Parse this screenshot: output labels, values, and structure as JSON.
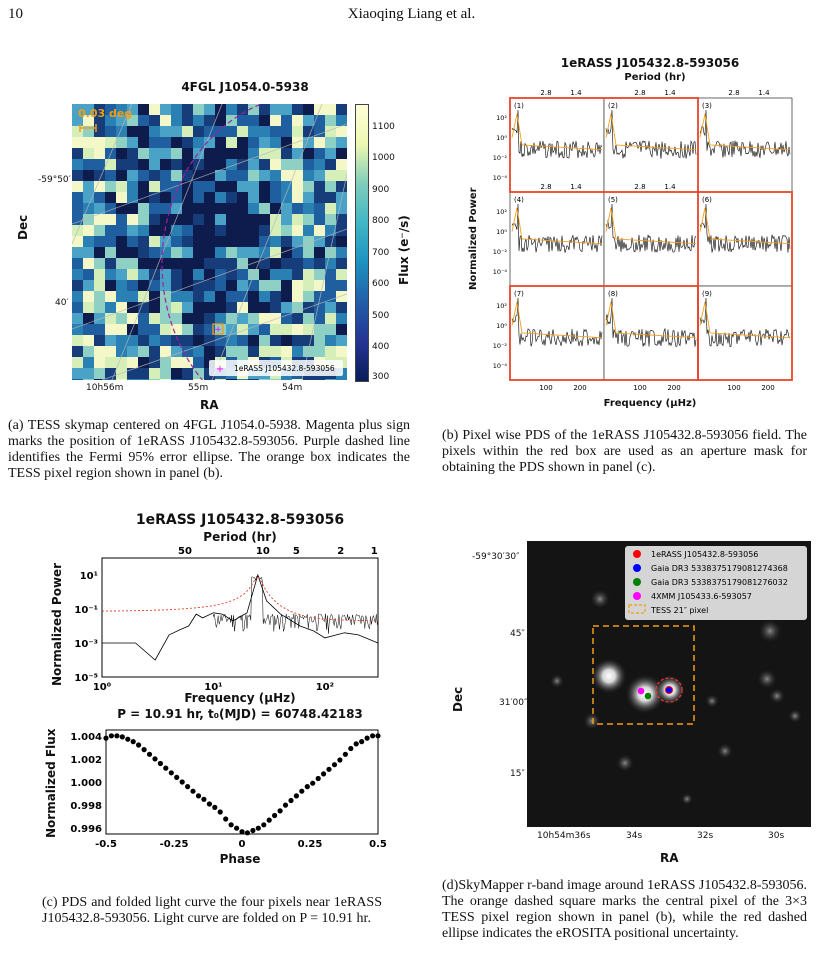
{
  "header": {
    "page_number": "10",
    "running_head": "Xiaoqing Liang et al."
  },
  "panel_a": {
    "title": "4FGL J1054.0-5938",
    "scale_label": "0.03 deg",
    "ylabel": "Dec",
    "xlabel": "RA",
    "colorbar_label": "Flux (e⁻/s)",
    "colorbar_ticks": [
      "1100",
      "1000",
      "900",
      "800",
      "700",
      "600",
      "500",
      "400",
      "300"
    ],
    "y_ticks": [
      "-59°50′",
      "40′"
    ],
    "x_ticks": [
      "10h56m",
      "55m",
      "54m"
    ],
    "legend": "1eRASS J105432.8-593056",
    "caption": "(a) TESS skymap centered on 4FGL J1054.0-5938. Magenta plus sign marks the position of 1eRASS J105432.8-593056. Purple dashed line identifies the Fermi 95% error ellipse. The orange box indicates the TESS pixel region shown in panel (b).",
    "colors": {
      "map_dark": "#0d1b4d",
      "map_mid": "#2a7fb3",
      "map_bright": "#f4f8c8",
      "ellipse": "#a020a0",
      "box": "#f39c12"
    }
  },
  "panel_b": {
    "title": "1eRASS J105432.8-593056",
    "top_axis_label": "Period (hr)",
    "top_ticks": [
      "2.8",
      "1.4"
    ],
    "ylabel": "Normalized Power",
    "xlabel": "Frequency (μHz)",
    "x_ticks": [
      "100",
      "200"
    ],
    "y_ticks": [
      "10²",
      "10⁰",
      "10⁻²",
      "10⁻⁴"
    ],
    "cells": [
      "(1)",
      "(2)",
      "(3)",
      "(4)",
      "(5)",
      "(6)",
      "(7)",
      "(8)",
      "(9)"
    ],
    "caption": "(b) Pixel wise PDS of the 1eRASS J105432.8-593056 field. The pixels within the red box are used as an aperture mask for obtaining the PDS shown in panel (c).",
    "colors": {
      "mask": "#e8452b",
      "pds": "#000000",
      "model": "#f0a020"
    }
  },
  "panel_c": {
    "title": "1eRASS J105432.8-593056",
    "top_axis_label": "Period (hr)",
    "top_ticks": [
      "50",
      "10",
      "5",
      "2",
      "1"
    ],
    "pds_ylabel": "Normalized Power",
    "pds_xlabel": "Frequency (μHz)",
    "pds_y_ticks": [
      "10¹",
      "10⁻¹",
      "10⁻³",
      "10⁻⁵"
    ],
    "pds_x_ticks": [
      "10⁰",
      "10¹",
      "10²"
    ],
    "lc_title": "P = 10.91 hr, t₀(MJD) = 60748.42183",
    "lc_ylabel": "Normalized Flux",
    "lc_xlabel": "Phase",
    "lc_y_ticks": [
      "1.004",
      "1.002",
      "1.000",
      "0.998",
      "0.996"
    ],
    "lc_x_ticks": [
      "-0.5",
      "-0.25",
      "0",
      "0.25",
      "0.5"
    ],
    "caption": "(c) PDS and folded light curve the four pixels near 1eRASS J105432.8-593056. Light curve are folded on P = 10.91 hr."
  },
  "panel_d": {
    "ylabel": "Dec",
    "xlabel": "RA",
    "y_ticks": [
      "-59°30′30″",
      "45″",
      "31′00″",
      "15″"
    ],
    "x_ticks": [
      "10h54m36s",
      "34s",
      "32s",
      "30s"
    ],
    "legend": [
      {
        "label": "1eRASS J105432.8-593056",
        "color": "#ff0000",
        "kind": "dot"
      },
      {
        "label": "Gaia DR3 5338375179081274368",
        "color": "#0000ff",
        "kind": "dot"
      },
      {
        "label": "Gaia DR3 5338375179081276032",
        "color": "#008000",
        "kind": "dot"
      },
      {
        "label": "4XMM J105433.6-593057",
        "color": "#ff00ff",
        "kind": "dot"
      },
      {
        "label": "TESS 21″ pixel",
        "color": "#f39c12",
        "kind": "box"
      }
    ],
    "caption": "(d)SkyMapper r-band image around 1eRASS J105432.8-593056. The orange dashed square marks the central pixel of the 3×3 TESS pixel region shown in panel (b), while the red dashed ellipse indicates the eROSITA positional uncertainty."
  },
  "chart_data": [
    {
      "type": "scatter",
      "title": "P = 10.91 hr, t₀(MJD) = 60748.42183",
      "xlabel": "Phase",
      "ylabel": "Normalized Flux",
      "xlim": [
        -0.5,
        0.5
      ],
      "ylim": [
        0.9955,
        1.0045
      ],
      "x": [
        -0.5,
        -0.48,
        -0.46,
        -0.44,
        -0.42,
        -0.4,
        -0.38,
        -0.36,
        -0.34,
        -0.32,
        -0.3,
        -0.28,
        -0.26,
        -0.24,
        -0.22,
        -0.2,
        -0.18,
        -0.16,
        -0.14,
        -0.12,
        -0.1,
        -0.08,
        -0.06,
        -0.04,
        -0.02,
        0,
        0.02,
        0.04,
        0.06,
        0.08,
        0.1,
        0.12,
        0.14,
        0.16,
        0.18,
        0.2,
        0.22,
        0.24,
        0.26,
        0.28,
        0.3,
        0.32,
        0.34,
        0.36,
        0.38,
        0.4,
        0.42,
        0.44,
        0.46,
        0.48,
        0.5
      ],
      "y": [
        1.0038,
        1.004,
        1.004,
        1.0039,
        1.0037,
        1.0035,
        1.0032,
        1.0028,
        1.0024,
        1.002,
        1.0016,
        1.0012,
        1.0008,
        1.0004,
        1.0,
        0.9996,
        0.9992,
        0.9988,
        0.9985,
        0.9981,
        0.9978,
        0.9974,
        0.9968,
        0.9963,
        0.996,
        0.9957,
        0.9956,
        0.9958,
        0.996,
        0.9963,
        0.9967,
        0.9971,
        0.9975,
        0.998,
        0.9984,
        0.9988,
        0.9992,
        0.9996,
        0.9999,
        1.0003,
        1.0007,
        1.0011,
        1.0015,
        1.0019,
        1.0024,
        1.0029,
        1.0033,
        1.0035,
        1.0038,
        1.004,
        1.004
      ]
    },
    {
      "type": "line",
      "title": "1eRASS J105432.8-593056",
      "xlabel": "Frequency (μHz)",
      "ylabel": "Normalized Power",
      "log_x": true,
      "log_y": true,
      "xlim": [
        1,
        300
      ],
      "ylim": [
        1e-05,
        100
      ],
      "series": [
        {
          "x": [
            1,
            2,
            3,
            4,
            5,
            6,
            7,
            8,
            10,
            12,
            15,
            20,
            25,
            30,
            40,
            60,
            80,
            100,
            150,
            200,
            300
          ],
          "y": [
            0.001,
            0.001,
            0.0001,
            0.003,
            0.006,
            0.01,
            0.05,
            0.03,
            0.06,
            0.05,
            0.02,
            0.06,
            10,
            0.3,
            0.05,
            0.01,
            0.005,
            0.002,
            0.004,
            0.003,
            0.001
          ]
        }
      ]
    }
  ]
}
